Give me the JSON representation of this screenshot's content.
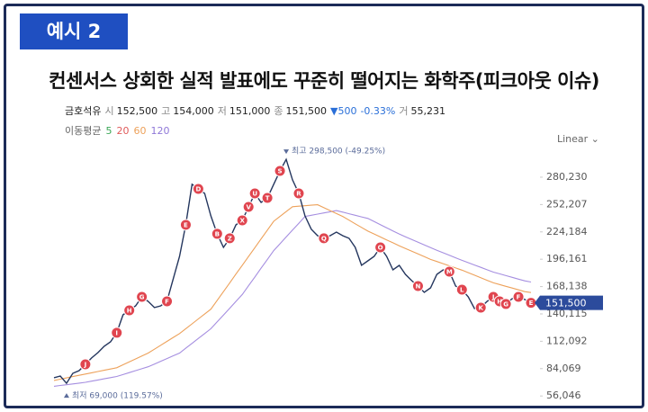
{
  "slide": {
    "badge": "예시 2",
    "title": "컨센서스 상회한 실적 발표에도 꾸준히 떨어지는 화학주(피크아웃 이슈)"
  },
  "chart_data": {
    "type": "line",
    "stock_header": {
      "name": "금호석유",
      "fields": [
        {
          "label": "시",
          "value": "152,500"
        },
        {
          "label": "고",
          "value": "154,000"
        },
        {
          "label": "저",
          "value": "151,000"
        },
        {
          "label": "종",
          "value": "151,500"
        }
      ],
      "change": "▼500",
      "change_pct": "-0.33%",
      "volume_label": "거",
      "volume": "55,231"
    },
    "moving_averages": {
      "label": "이동평균",
      "periods": [
        {
          "name": "5",
          "color": "#3aa655"
        },
        {
          "name": "20",
          "color": "#e05a5a"
        },
        {
          "name": "60",
          "color": "#eda15a"
        },
        {
          "name": "120",
          "color": "#8f78d8"
        }
      ]
    },
    "scale_label": "Linear",
    "series": [
      {
        "name": "금호석유",
        "color": "#24365e",
        "values": [
          74700,
          76500,
          69000,
          79300,
          82000,
          88500,
          95000,
          100500,
          107000,
          111500,
          120800,
          139200,
          143800,
          148400,
          157600,
          153000,
          146600,
          148400,
          153000,
          176100,
          199100,
          231400,
          272900,
          268200,
          263600,
          240600,
          222200,
          208300,
          217600,
          231400,
          236000,
          249800,
          263600,
          254400,
          259000,
          272900,
          286700,
          298500,
          277500,
          263600,
          240600,
          226800,
          220300,
          217600,
          220300,
          224000,
          220300,
          217600,
          208300,
          190000,
          194500,
          199100,
          208300,
          199100,
          185300,
          189900,
          180700,
          174200,
          168700,
          162200,
          166800,
          180700,
          185300,
          183400,
          168700,
          165000,
          157600,
          145600,
          146600,
          153000,
          157600,
          153000,
          150300,
          155800,
          157600,
          154900,
          151500
        ]
      },
      {
        "name": "60",
        "color": "#eda15a",
        "values": [
          72000,
          73300,
          74600,
          75900,
          77200,
          78500,
          79800,
          81100,
          82400,
          83700,
          85000,
          88000,
          91000,
          94000,
          97000,
          100000,
          104000,
          108000,
          112000,
          116000,
          120000,
          125000,
          130000,
          135000,
          140000,
          145000,
          154000,
          163000,
          172000,
          181000,
          190000,
          199000,
          208000,
          217000,
          226000,
          235000,
          240000,
          245000,
          250000,
          250500,
          251000,
          251500,
          252000,
          249000,
          246000,
          243000,
          240000,
          236250,
          232500,
          228750,
          225000,
          222000,
          219000,
          216000,
          213000,
          210000,
          207200,
          204400,
          201600,
          198800,
          196000,
          193800,
          191600,
          189400,
          187200,
          185000,
          182400,
          179800,
          177200,
          174600,
          172000,
          170200,
          168400,
          166600,
          164800,
          163000,
          162000
        ]
      },
      {
        "name": "120",
        "color": "#a58ee0",
        "values": [
          66000,
          66800,
          67600,
          68400,
          69200,
          70000,
          71200,
          72400,
          73600,
          74800,
          76000,
          78000,
          80000,
          82000,
          84000,
          86000,
          88800,
          91600,
          94400,
          97200,
          100000,
          105000,
          110000,
          115000,
          120000,
          125000,
          132000,
          139000,
          146000,
          153000,
          160000,
          169000,
          178000,
          187000,
          196000,
          205000,
          212000,
          219000,
          226000,
          233000,
          240000,
          241200,
          242400,
          243600,
          244800,
          246000,
          244400,
          242800,
          241200,
          239600,
          238000,
          234800,
          231600,
          228400,
          225200,
          222000,
          219200,
          216400,
          213600,
          210800,
          208000,
          205400,
          202800,
          200200,
          197600,
          195000,
          192600,
          190200,
          187800,
          185400,
          183000,
          181200,
          179400,
          177600,
          175800,
          174000,
          172800
        ]
      }
    ],
    "ylim": [
      47000,
      309700
    ],
    "yticks": [
      {
        "value": 56046,
        "label": "56,046"
      },
      {
        "value": 84069,
        "label": "84,069"
      },
      {
        "value": 112092,
        "label": "112,092"
      },
      {
        "value": 140115,
        "label": "140,115"
      },
      {
        "value": 168138,
        "label": "168,138"
      },
      {
        "value": 196161,
        "label": "196,161"
      },
      {
        "value": 224184,
        "label": "224,184"
      },
      {
        "value": 252207,
        "label": "252,207"
      },
      {
        "value": 280230,
        "label": "280,230"
      }
    ],
    "current_price": {
      "value": 151500,
      "label": "151,500"
    },
    "high_annotation": "최고 298,500 (-49.25%)",
    "low_annotation": "최저 69,000 (119.57%)",
    "event_markers": [
      "J",
      "I",
      "H",
      "G",
      "F",
      "E",
      "D",
      "B",
      "Z",
      "X",
      "V",
      "U",
      "T",
      "S",
      "R",
      "Q",
      "O",
      "N",
      "M",
      "L",
      "K",
      "J",
      "H",
      "G",
      "F",
      "E"
    ],
    "grid": false
  }
}
